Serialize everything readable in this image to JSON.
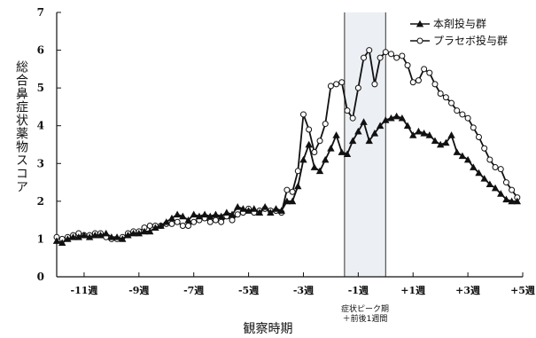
{
  "chart_data": {
    "type": "line",
    "xlabel": "観察時期",
    "ylabel": "総合鼻症状薬物スコア",
    "ylim": [
      0,
      7
    ],
    "yticks": [
      0,
      1,
      2,
      3,
      4,
      5,
      6,
      7
    ],
    "xlim": [
      -12,
      5
    ],
    "xticks": [
      {
        "value": -11,
        "label": "-11週"
      },
      {
        "value": -9,
        "label": "-9週"
      },
      {
        "value": -7,
        "label": "-7週"
      },
      {
        "value": -5,
        "label": "-5週"
      },
      {
        "value": -3,
        "label": "-3週"
      },
      {
        "value": -1,
        "label": "-1週"
      },
      {
        "value": 1,
        "label": "+1週"
      },
      {
        "value": 3,
        "label": "+3週"
      },
      {
        "value": 5,
        "label": "+5週"
      }
    ],
    "shaded_region": {
      "x": [
        -1.5,
        0
      ],
      "label_line1": "症状ピーク期",
      "label_line2": "＋前後1週間"
    },
    "legend_position": "top-right",
    "grid": false,
    "series": [
      {
        "name": "本剤投与群",
        "marker": "filled-triangle",
        "color": "#111111",
        "x": [
          -12.0,
          -11.8,
          -11.6,
          -11.4,
          -11.2,
          -11.0,
          -10.8,
          -10.6,
          -10.4,
          -10.2,
          -10.0,
          -9.8,
          -9.6,
          -9.4,
          -9.2,
          -9.0,
          -8.8,
          -8.6,
          -8.4,
          -8.2,
          -8.0,
          -7.8,
          -7.6,
          -7.4,
          -7.2,
          -7.0,
          -6.8,
          -6.6,
          -6.4,
          -6.2,
          -6.0,
          -5.8,
          -5.6,
          -5.4,
          -5.2,
          -5.0,
          -4.8,
          -4.6,
          -4.4,
          -4.2,
          -4.0,
          -3.8,
          -3.6,
          -3.4,
          -3.2,
          -3.0,
          -2.8,
          -2.6,
          -2.4,
          -2.2,
          -2.0,
          -1.8,
          -1.6,
          -1.4,
          -1.2,
          -1.0,
          -0.8,
          -0.6,
          -0.4,
          -0.2,
          0.0,
          0.2,
          0.4,
          0.6,
          0.8,
          1.0,
          1.2,
          1.4,
          1.6,
          1.8,
          2.0,
          2.2,
          2.4,
          2.6,
          2.8,
          3.0,
          3.2,
          3.4,
          3.6,
          3.8,
          4.0,
          4.2,
          4.4,
          4.6,
          4.8
        ],
        "values": [
          0.95,
          0.9,
          1.0,
          1.05,
          1.05,
          1.1,
          1.05,
          1.1,
          1.1,
          1.15,
          1.05,
          1.05,
          1.0,
          1.1,
          1.15,
          1.15,
          1.2,
          1.2,
          1.3,
          1.35,
          1.45,
          1.55,
          1.65,
          1.6,
          1.5,
          1.65,
          1.6,
          1.65,
          1.6,
          1.65,
          1.6,
          1.7,
          1.65,
          1.85,
          1.8,
          1.75,
          1.8,
          1.7,
          1.85,
          1.7,
          1.8,
          1.75,
          2.0,
          2.0,
          2.4,
          3.1,
          3.5,
          2.9,
          2.8,
          3.1,
          3.4,
          3.75,
          3.3,
          3.25,
          3.6,
          3.85,
          4.1,
          3.6,
          3.8,
          4.0,
          4.15,
          4.2,
          4.25,
          4.2,
          4.0,
          3.75,
          3.85,
          3.8,
          3.75,
          3.6,
          3.5,
          3.55,
          3.75,
          3.3,
          3.2,
          3.1,
          2.9,
          2.75,
          2.6,
          2.45,
          2.35,
          2.2,
          2.05,
          2.0,
          2.0
        ]
      },
      {
        "name": "プラセボ投与群",
        "marker": "open-circle",
        "color": "#111111",
        "x": [
          -12.0,
          -11.8,
          -11.6,
          -11.4,
          -11.2,
          -11.0,
          -10.8,
          -10.6,
          -10.4,
          -10.2,
          -10.0,
          -9.8,
          -9.6,
          -9.4,
          -9.2,
          -9.0,
          -8.8,
          -8.6,
          -8.4,
          -8.2,
          -8.0,
          -7.8,
          -7.6,
          -7.4,
          -7.2,
          -7.0,
          -6.8,
          -6.6,
          -6.4,
          -6.2,
          -6.0,
          -5.8,
          -5.6,
          -5.4,
          -5.2,
          -5.0,
          -4.8,
          -4.6,
          -4.4,
          -4.2,
          -4.0,
          -3.8,
          -3.6,
          -3.4,
          -3.2,
          -3.0,
          -2.8,
          -2.6,
          -2.4,
          -2.2,
          -2.0,
          -1.8,
          -1.6,
          -1.4,
          -1.2,
          -1.0,
          -0.8,
          -0.6,
          -0.4,
          -0.2,
          0.0,
          0.2,
          0.4,
          0.6,
          0.8,
          1.0,
          1.2,
          1.4,
          1.6,
          1.8,
          2.0,
          2.2,
          2.4,
          2.6,
          2.8,
          3.0,
          3.2,
          3.4,
          3.6,
          3.8,
          4.0,
          4.2,
          4.4,
          4.6,
          4.8
        ],
        "values": [
          1.05,
          1.0,
          1.05,
          1.1,
          1.15,
          1.1,
          1.1,
          1.15,
          1.15,
          1.05,
          1.0,
          1.0,
          1.05,
          1.15,
          1.2,
          1.2,
          1.3,
          1.35,
          1.35,
          1.35,
          1.4,
          1.4,
          1.45,
          1.35,
          1.35,
          1.45,
          1.5,
          1.55,
          1.45,
          1.5,
          1.45,
          1.6,
          1.5,
          1.65,
          1.7,
          1.8,
          1.7,
          1.75,
          1.8,
          1.75,
          1.75,
          1.7,
          2.3,
          2.25,
          2.8,
          4.3,
          3.9,
          3.3,
          3.6,
          4.05,
          5.05,
          5.1,
          5.15,
          4.4,
          4.2,
          5.0,
          5.8,
          6.0,
          5.1,
          5.8,
          5.95,
          5.9,
          5.8,
          5.85,
          5.6,
          5.15,
          5.2,
          5.5,
          5.4,
          5.1,
          4.85,
          4.75,
          4.6,
          4.4,
          4.3,
          4.2,
          3.95,
          3.7,
          3.4,
          3.1,
          2.9,
          2.85,
          2.5,
          2.3,
          2.1
        ]
      }
    ]
  }
}
